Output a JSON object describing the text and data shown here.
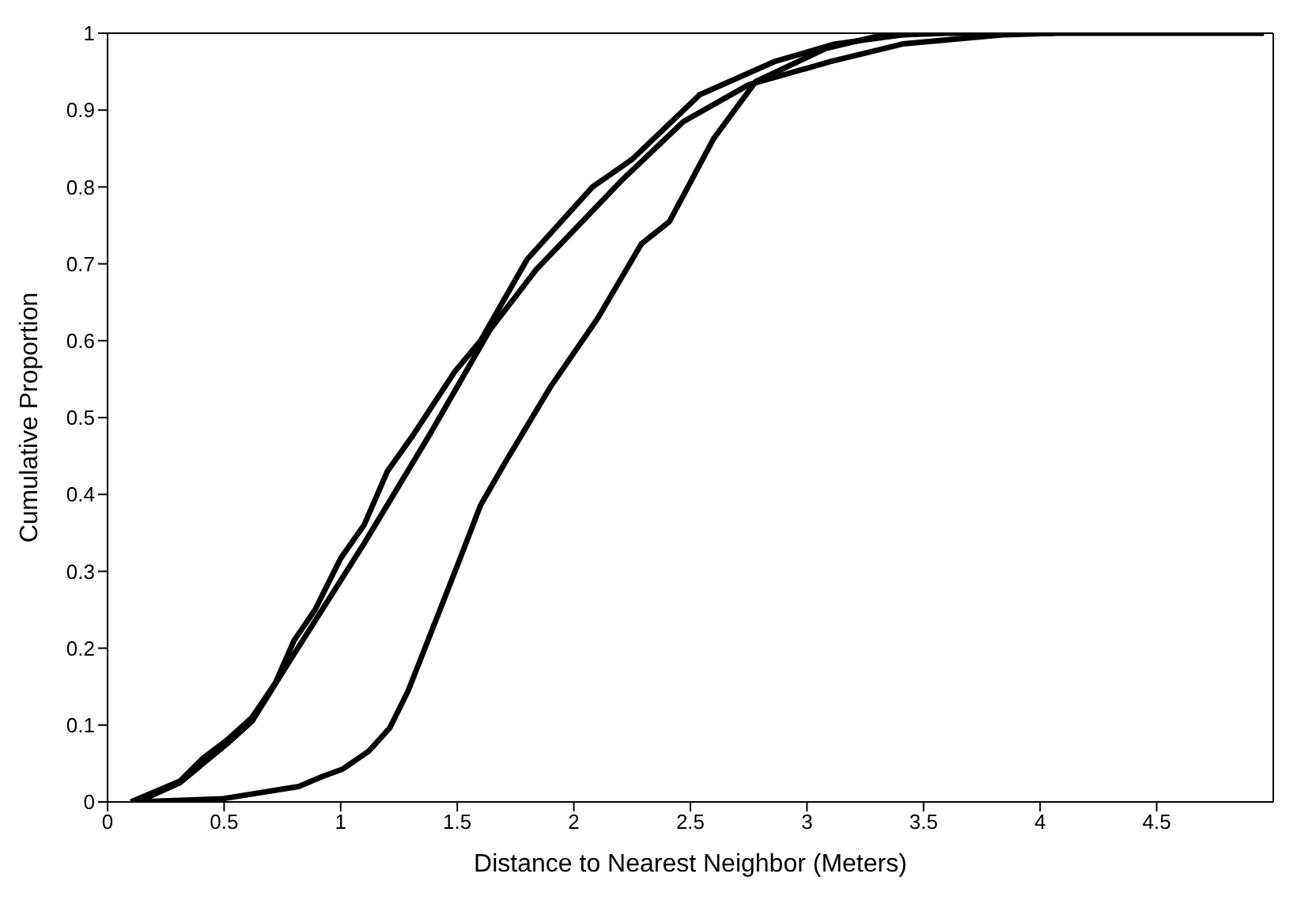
{
  "chart_data": {
    "type": "line",
    "xlabel": "Distance to Nearest Neighbor (Meters)",
    "ylabel": "Cumulative Proportion",
    "xlim": [
      0,
      5
    ],
    "xticks": [
      0,
      0.5,
      1,
      1.5,
      2,
      2.5,
      3,
      3.5,
      4,
      4.5
    ],
    "ylim": [
      0,
      1
    ],
    "yticks": [
      0,
      0.1,
      0.2,
      0.3,
      0.4,
      0.5,
      0.6,
      0.7,
      0.8,
      0.9,
      1
    ],
    "marker": "none",
    "line_style": "solid",
    "series": [
      {
        "color": "#000000",
        "x": [
          0.1,
          0.31,
          0.41,
          0.51,
          0.62,
          0.72,
          0.8,
          0.89,
          1.0,
          1.1,
          1.2,
          1.31,
          1.49,
          1.6,
          1.8,
          2.08,
          2.25,
          2.54,
          2.86,
          3.12,
          3.41,
          3.6,
          4.96
        ],
        "values": [
          0,
          0.027,
          0.057,
          0.08,
          0.11,
          0.155,
          0.21,
          0.25,
          0.317,
          0.36,
          0.43,
          0.477,
          0.56,
          0.6,
          0.706,
          0.8,
          0.836,
          0.92,
          0.963,
          0.986,
          0.998,
          1,
          1
        ]
      },
      {
        "color": "#000000",
        "x": [
          0.15,
          0.31,
          0.41,
          0.51,
          0.62,
          0.77,
          1.1,
          1.38,
          1.64,
          1.84,
          2.21,
          2.47,
          2.75,
          3.1,
          3.41,
          3.84,
          4.06
        ],
        "values": [
          0.003,
          0.025,
          0.05,
          0.075,
          0.105,
          0.178,
          0.336,
          0.477,
          0.614,
          0.693,
          0.81,
          0.885,
          0.933,
          0.963,
          0.986,
          0.998,
          1
        ]
      },
      {
        "color": "#000000",
        "x": [
          0.12,
          0.49,
          0.82,
          0.92,
          1.01,
          1.12,
          1.21,
          1.29,
          1.4,
          1.51,
          1.6,
          1.71,
          1.9,
          2.1,
          2.29,
          2.41,
          2.6,
          2.78,
          3.08,
          3.3,
          3.5
        ],
        "values": [
          0,
          0.004,
          0.02,
          0.033,
          0.043,
          0.066,
          0.096,
          0.145,
          0.23,
          0.315,
          0.386,
          0.444,
          0.54,
          0.628,
          0.726,
          0.755,
          0.863,
          0.937,
          0.98,
          0.996,
          1
        ]
      }
    ]
  }
}
